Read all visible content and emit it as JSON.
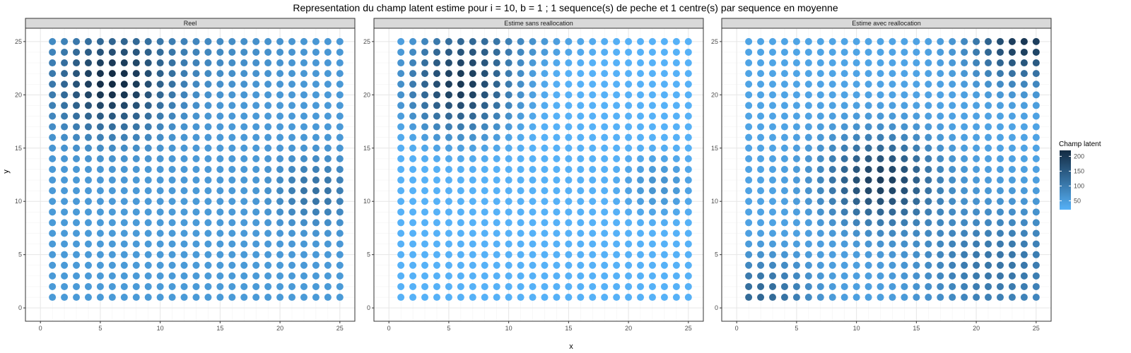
{
  "chart_data": {
    "type": "scatter",
    "title": "Representation du champ latent estime pour i = 10, b = 1 ; 1 sequence(s) de peche et 1 centre(s) par sequence en moyenne",
    "xlabel": "x",
    "ylabel": "y",
    "xlim": [
      0,
      25
    ],
    "ylim": [
      0,
      25
    ],
    "xticks": [
      0,
      5,
      10,
      15,
      20,
      25
    ],
    "yticks": [
      0,
      5,
      10,
      15,
      20,
      25
    ],
    "grid": true,
    "grid_x": [
      1,
      2,
      3,
      4,
      5,
      6,
      7,
      8,
      9,
      10,
      11,
      12,
      13,
      14,
      15,
      16,
      17,
      18,
      19,
      20,
      21,
      22,
      23,
      24,
      25
    ],
    "grid_y": [
      1,
      2,
      3,
      4,
      5,
      6,
      7,
      8,
      9,
      10,
      11,
      12,
      13,
      14,
      15,
      16,
      17,
      18,
      19,
      20,
      21,
      22,
      23,
      24,
      25
    ],
    "legend": {
      "title": "Champ latent",
      "position": "right",
      "ticks": [
        50,
        100,
        150,
        200
      ],
      "range": [
        20,
        220
      ],
      "low_color": "#56b1f7",
      "high_color": "#132b43"
    },
    "panels": [
      {
        "label": "Reel",
        "field_background": 55,
        "field_components": [
          {
            "cx": 6,
            "cy": 21,
            "sx": 3.2,
            "sy": 3.0,
            "amp": 160
          },
          {
            "cx": 23,
            "cy": 11,
            "sx": 2.2,
            "sy": 2.0,
            "amp": 60
          },
          {
            "cx": 12,
            "cy": 24,
            "sx": 6.0,
            "sy": 2.5,
            "amp": 25
          }
        ]
      },
      {
        "label": "Estime sans reallocation",
        "field_background": 15,
        "field_components": [
          {
            "cx": 6,
            "cy": 21,
            "sx": 3.2,
            "sy": 3.2,
            "amp": 185
          },
          {
            "cx": 22.5,
            "cy": 11.5,
            "sx": 2.2,
            "sy": 2.0,
            "amp": 50
          },
          {
            "cx": 10,
            "cy": 25,
            "sx": 5.0,
            "sy": 1.5,
            "amp": 40
          }
        ]
      },
      {
        "label": "Estime avec reallocation",
        "field_background": 40,
        "field_components": [
          {
            "cx": 12,
            "cy": 12,
            "sx": 3.2,
            "sy": 2.8,
            "amp": 150
          },
          {
            "cx": 24,
            "cy": 25,
            "sx": 3.0,
            "sy": 2.5,
            "amp": 160
          },
          {
            "cx": 2,
            "cy": 1,
            "sx": 3.0,
            "sy": 2.5,
            "amp": 90
          },
          {
            "cx": 22,
            "cy": 4,
            "sx": 5.0,
            "sy": 4.0,
            "amp": 70
          }
        ]
      }
    ]
  }
}
